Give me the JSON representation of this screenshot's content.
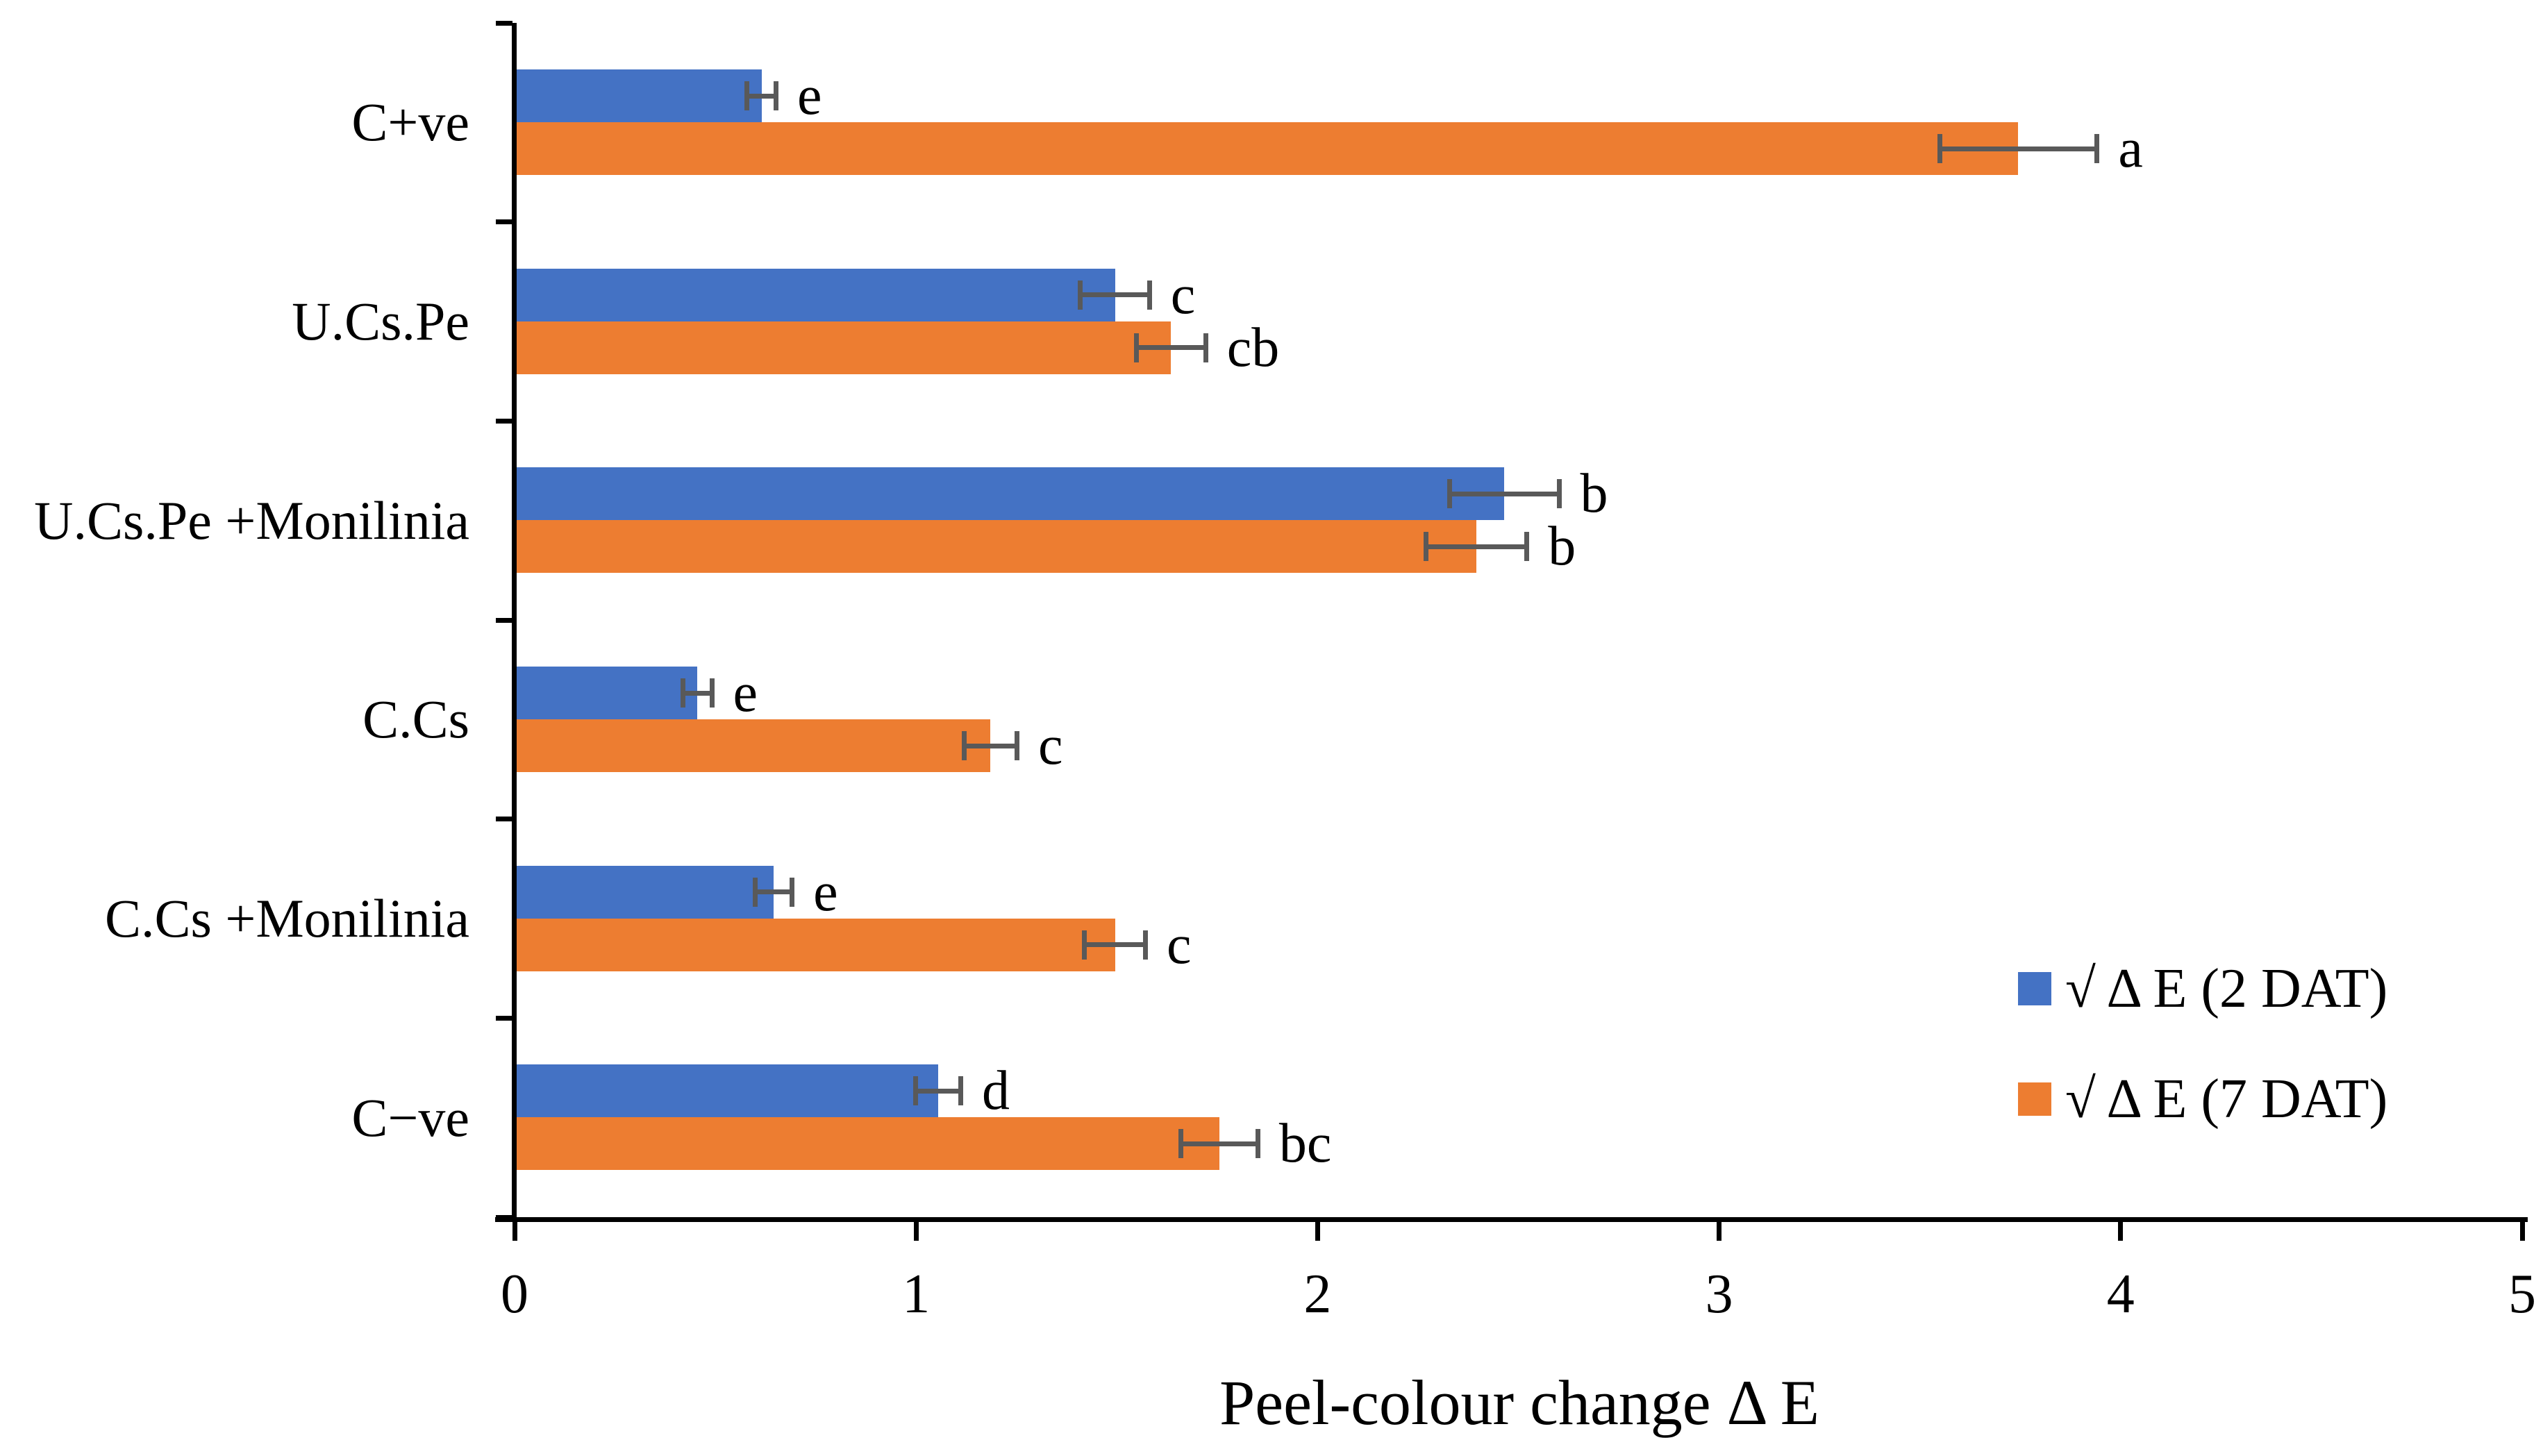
{
  "chart_data": {
    "type": "bar",
    "orientation": "horizontal",
    "xlabel": "Peel-colour change Δ E",
    "xlim": [
      0,
      5
    ],
    "xticks": [
      "0",
      "1",
      "2",
      "3",
      "4",
      "5"
    ],
    "grid": false,
    "legend_position": "right-lower-inside",
    "categories": [
      "C+ve",
      "U.Cs.Pe",
      "U.Cs.Pe +Monilinia",
      "C.Cs",
      "C.Cs +Monilinia",
      "C−ve"
    ],
    "series": [
      {
        "name": "√ Δ E (2 DAT)",
        "color": "#4472C4",
        "values": [
          0.61,
          1.49,
          2.46,
          0.45,
          0.64,
          1.05
        ],
        "errors": [
          0.03,
          0.08,
          0.13,
          0.03,
          0.04,
          0.05
        ],
        "letters": [
          "e",
          "c",
          "b",
          "e",
          "e",
          "d"
        ]
      },
      {
        "name": "√ Δ E (7 DAT)",
        "color": "#ED7D31",
        "values": [
          3.74,
          1.63,
          2.39,
          1.18,
          1.49,
          1.75
        ],
        "errors": [
          0.19,
          0.08,
          0.12,
          0.06,
          0.07,
          0.09
        ],
        "letters": [
          "a",
          "cb",
          "b",
          "c",
          "c",
          "bc"
        ]
      }
    ],
    "error_bar_color": "#595959",
    "axis_color": "#000000"
  }
}
